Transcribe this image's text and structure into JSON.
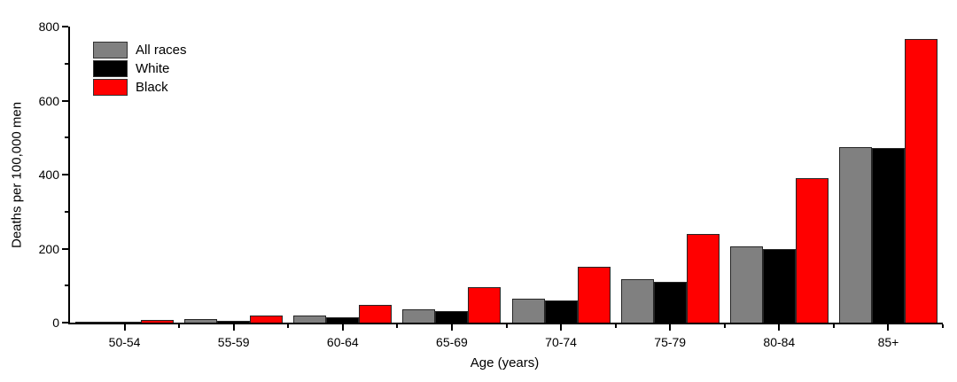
{
  "chart_data": {
    "type": "bar",
    "title": "",
    "xlabel": "Age (years)",
    "ylabel": "Deaths per 100,000 men",
    "categories": [
      "50-54",
      "55-59",
      "60-64",
      "65-69",
      "70-74",
      "75-79",
      "80-84",
      "85+"
    ],
    "series": [
      {
        "name": "All races",
        "color": "#808080",
        "values": [
          2,
          10,
          19,
          37,
          65,
          118,
          207,
          474
        ]
      },
      {
        "name": "White",
        "color": "#000000",
        "values": [
          1.5,
          6,
          14,
          31,
          60,
          111,
          200,
          472
        ]
      },
      {
        "name": "Black",
        "color": "#ff0000",
        "values": [
          8,
          20,
          48,
          96,
          150,
          239,
          390,
          766
        ]
      }
    ],
    "ylim": [
      0,
      800
    ],
    "yticks_major": [
      0,
      200,
      400,
      600,
      800
    ],
    "yticks_minor": [
      100,
      300,
      500,
      700
    ],
    "legend_position": "top-left",
    "grid": false,
    "background_color": "#ffffff",
    "axis_color": "#000000",
    "bar_outline_color": "#262626"
  }
}
